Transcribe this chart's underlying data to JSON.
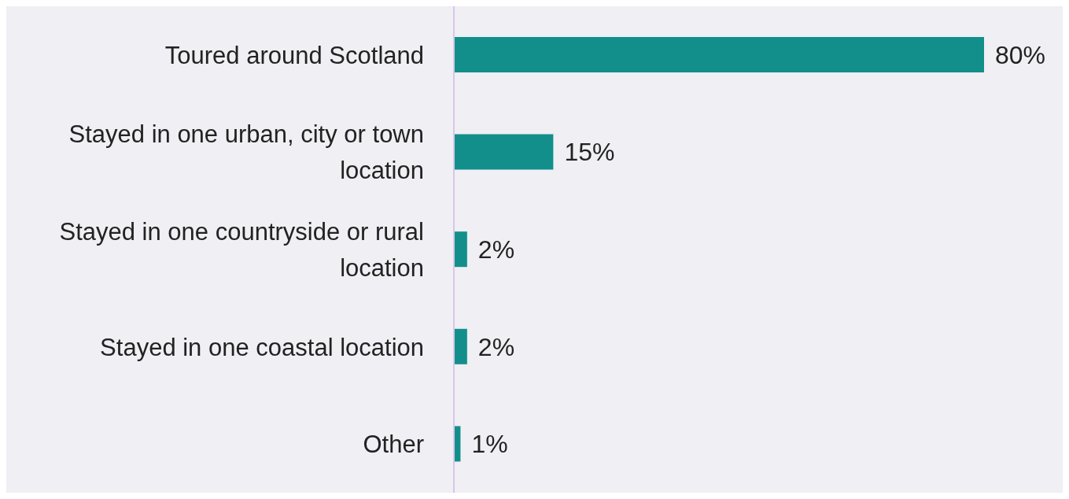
{
  "chart_data": {
    "type": "bar",
    "orientation": "horizontal",
    "categories": [
      "Toured around Scotland",
      "Stayed in one urban, city or town location",
      "Stayed in one countryside or rural location",
      "Stayed in one coastal location",
      "Other"
    ],
    "values": [
      80,
      15,
      2,
      2,
      1
    ],
    "value_labels": [
      "80%",
      "15%",
      "2%",
      "2%",
      "1%"
    ],
    "color": "#128f8b"
  }
}
